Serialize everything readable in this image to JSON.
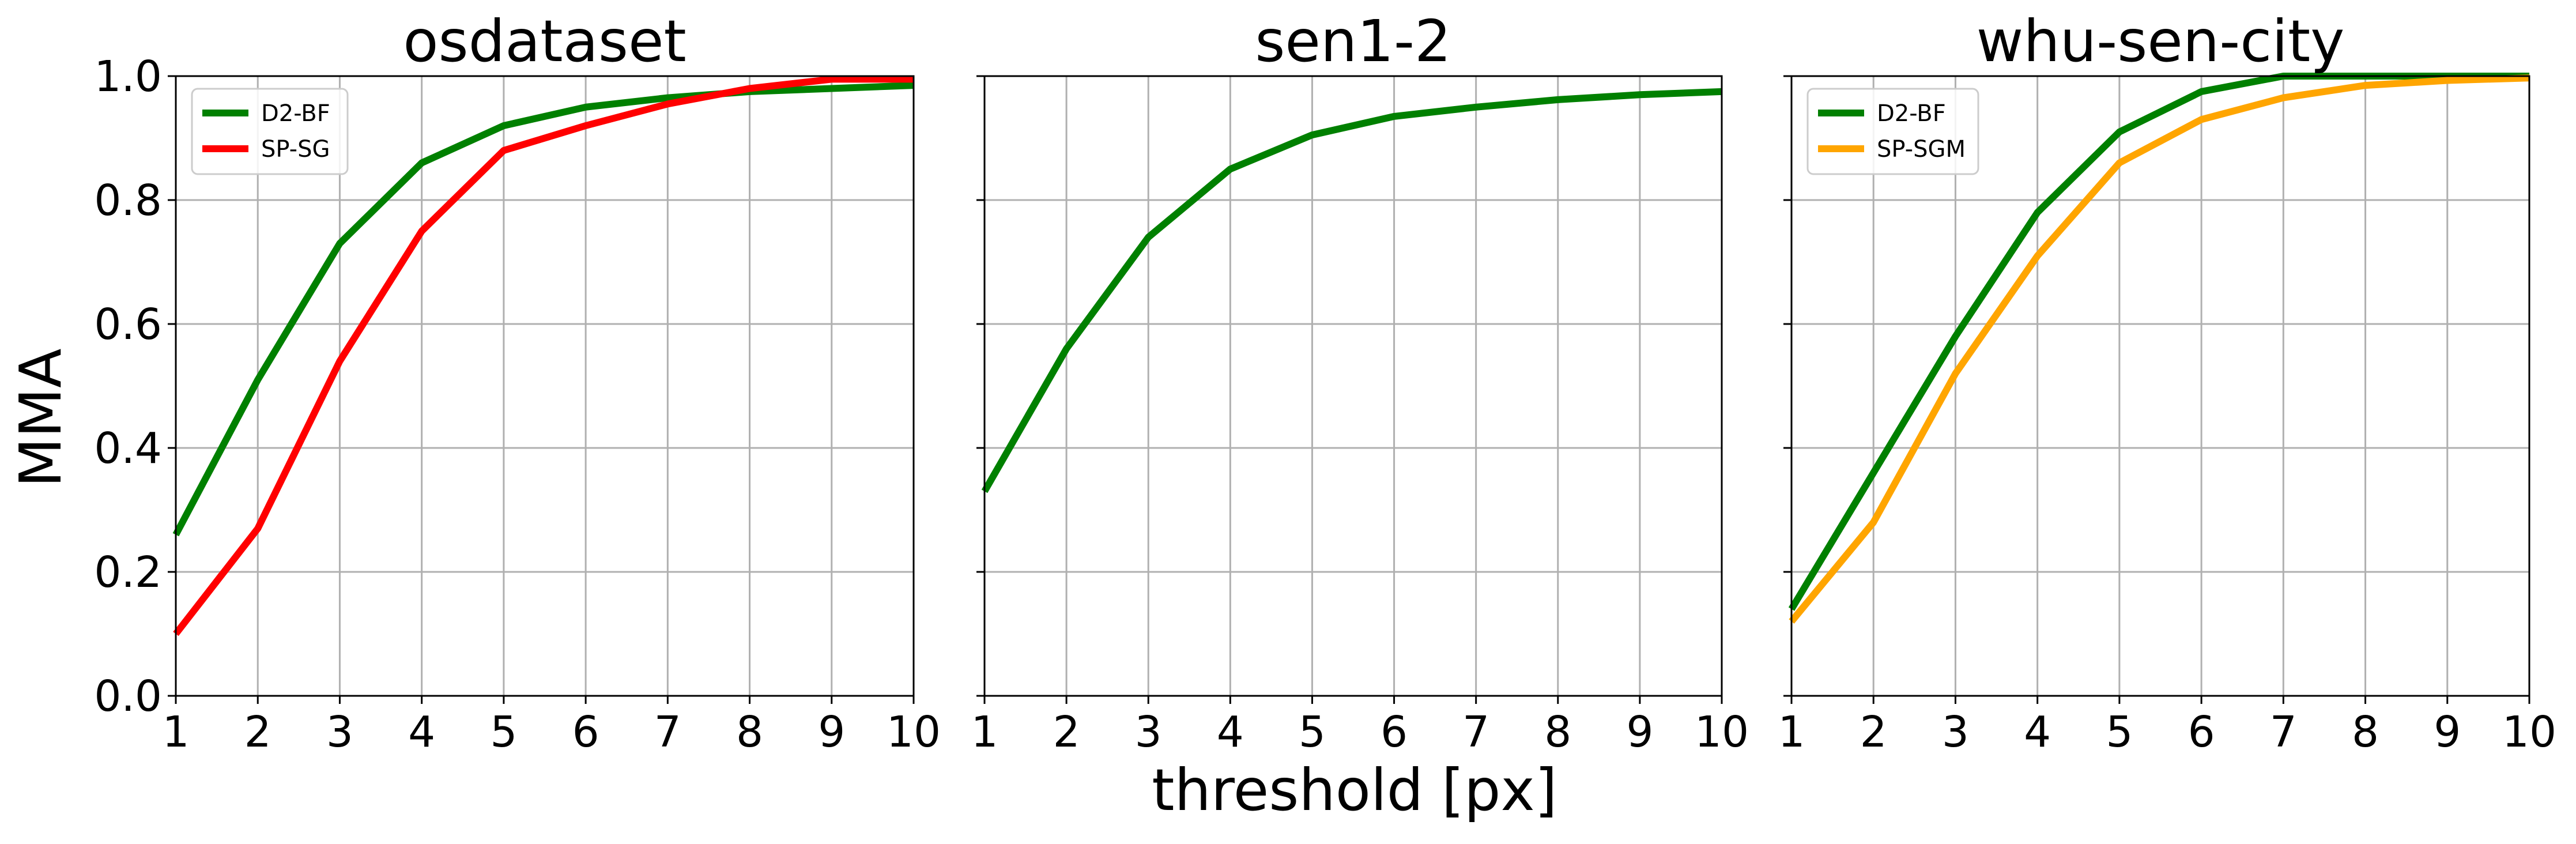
{
  "figure": {
    "xlabel": "threshold [px]",
    "ylabel": "MMA"
  },
  "chart_data": [
    {
      "type": "line",
      "title": "osdataset",
      "xlabel": "",
      "ylabel": "MMA",
      "xlim": [
        1,
        10
      ],
      "ylim": [
        0.0,
        1.0
      ],
      "xticks": [
        "1",
        "2",
        "3",
        "4",
        "5",
        "6",
        "7",
        "8",
        "9",
        "10"
      ],
      "yticks": [
        "0.0",
        "0.2",
        "0.4",
        "0.6",
        "0.8",
        "1.0"
      ],
      "grid": true,
      "legend": "top-left",
      "x": [
        1,
        2,
        3,
        4,
        5,
        6,
        7,
        8,
        9,
        10
      ],
      "series": [
        {
          "name": "D2-BF",
          "color": "#008000",
          "values": [
            0.26,
            0.51,
            0.73,
            0.86,
            0.92,
            0.95,
            0.965,
            0.975,
            0.98,
            0.985
          ]
        },
        {
          "name": "SP-SG",
          "color": "#ff0000",
          "values": [
            0.1,
            0.27,
            0.54,
            0.75,
            0.88,
            0.92,
            0.955,
            0.98,
            0.995,
            0.995
          ]
        }
      ]
    },
    {
      "type": "line",
      "title": "sen1-2",
      "xlabel": "",
      "ylabel": "",
      "xlim": [
        1,
        10
      ],
      "ylim": [
        0.0,
        1.0
      ],
      "xticks": [
        "1",
        "2",
        "3",
        "4",
        "5",
        "6",
        "7",
        "8",
        "9",
        "10"
      ],
      "yticks": [],
      "grid": true,
      "legend": "none",
      "x": [
        1,
        2,
        3,
        4,
        5,
        6,
        7,
        8,
        9,
        10
      ],
      "series": [
        {
          "color": "#008000",
          "values": [
            0.33,
            0.56,
            0.74,
            0.85,
            0.905,
            0.935,
            0.95,
            0.962,
            0.97,
            0.975
          ]
        }
      ]
    },
    {
      "type": "line",
      "title": "whu-sen-city",
      "xlabel": "",
      "ylabel": "",
      "xlim": [
        1,
        10
      ],
      "ylim": [
        0.0,
        1.0
      ],
      "xticks": [
        "1",
        "2",
        "3",
        "4",
        "5",
        "6",
        "7",
        "8",
        "9",
        "10"
      ],
      "yticks": [],
      "grid": true,
      "legend": "top-left",
      "x": [
        1,
        2,
        3,
        4,
        5,
        6,
        7,
        8,
        9,
        10
      ],
      "series": [
        {
          "name": "D2-BF",
          "color": "#008000",
          "values": [
            0.14,
            0.36,
            0.58,
            0.78,
            0.91,
            0.975,
            1.0,
            1.0,
            1.0,
            1.0
          ]
        },
        {
          "name": "SP-SGM",
          "color": "#ffa500",
          "values": [
            0.12,
            0.28,
            0.52,
            0.71,
            0.86,
            0.93,
            0.965,
            0.985,
            0.993,
            0.997
          ]
        }
      ]
    }
  ]
}
